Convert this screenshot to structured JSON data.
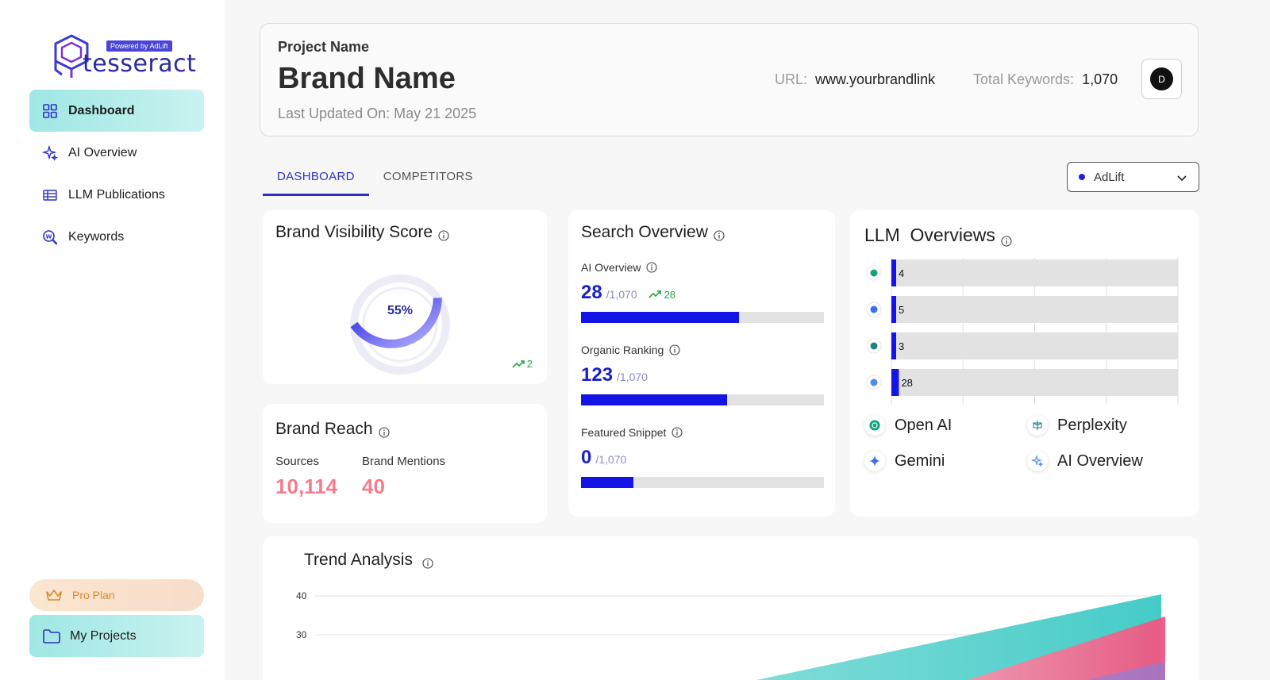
{
  "sidebar": {
    "logo_text": "tesseract",
    "logo_badge": "Powered by AdLift",
    "items": [
      {
        "label": "Dashboard",
        "icon": "grid-icon",
        "active": true
      },
      {
        "label": "AI Overview",
        "icon": "sparkle-icon",
        "active": false
      },
      {
        "label": "LLM Publications",
        "icon": "table-icon",
        "active": false
      },
      {
        "label": "Keywords",
        "icon": "magnifier-w-icon",
        "active": false
      }
    ],
    "pro_plan": "Pro Plan",
    "my_projects": "My Projects"
  },
  "header": {
    "project_label": "Project Name",
    "brand_name": "Brand Name",
    "last_updated": "Last Updated On: May 21 2025",
    "url_label": "URL:",
    "url_value": "www.yourbrandlink",
    "keywords_label": "Total Keywords:",
    "keywords_value": "1,070",
    "avatar_initial": "D"
  },
  "tabs": [
    {
      "label": "DASHBOARD",
      "active": true
    },
    {
      "label": "COMPETITORS",
      "active": false
    }
  ],
  "brand_select": {
    "value": "AdLift",
    "dot_color": "#1a22e0"
  },
  "brand_visibility": {
    "title": "Brand Visibility Score",
    "value": "55%",
    "percent": 55,
    "trend": "2"
  },
  "brand_reach": {
    "title": "Brand Reach",
    "sources_label": "Sources",
    "sources_value": "10,114",
    "mentions_label": "Brand Mentions",
    "mentions_value": "40"
  },
  "search_overview": {
    "title": "Search Overview",
    "metrics": [
      {
        "label": "AI Overview",
        "value": "28",
        "total": "/1,070",
        "trend": "28",
        "fill": 0.65
      },
      {
        "label": "Organic Ranking",
        "value": "123",
        "total": "/1,070",
        "trend": "",
        "fill": 0.6
      },
      {
        "label": "Featured Snippet",
        "value": "0",
        "total": "/1,070",
        "trend": "",
        "fill": 0.215
      }
    ]
  },
  "llm_overviews": {
    "title": "LLM  Overviews",
    "legend": [
      {
        "label": "Open AI",
        "icon": "openai-icon"
      },
      {
        "label": "Perplexity",
        "icon": "perplexity-icon"
      },
      {
        "label": "Gemini",
        "icon": "gemini-icon"
      },
      {
        "label": "AI Overview",
        "icon": "ai-overview-icon"
      }
    ]
  },
  "chart_data": [
    {
      "type": "bar",
      "orientation": "horizontal",
      "categories": [
        "Open AI",
        "Gemini",
        "Perplexity",
        "AI Overview"
      ],
      "values": [
        4,
        5,
        3,
        28
      ],
      "xlim": [
        0,
        1070
      ],
      "grid": true
    },
    {
      "type": "area",
      "title": "Trend Analysis",
      "y_ticks": [
        "40",
        "30"
      ],
      "ylim": [
        0,
        40
      ],
      "colors": [
        "#3cc9c5",
        "#f06386"
      ]
    }
  ],
  "trend": {
    "title": "Trend Analysis",
    "y_tick_40": "40",
    "y_tick_30": "30"
  }
}
